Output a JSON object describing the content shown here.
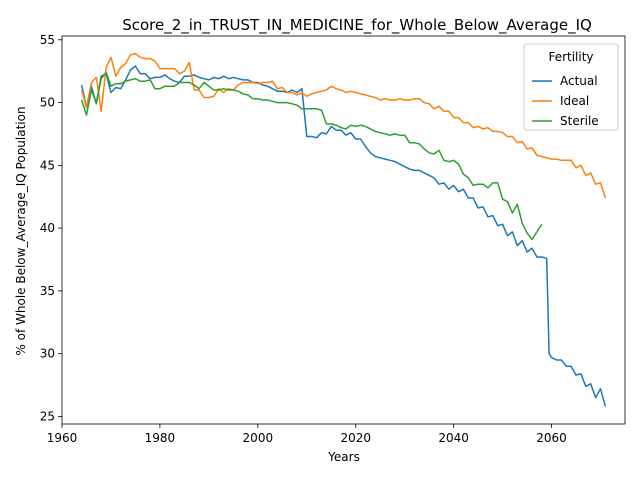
{
  "chart_data": {
    "type": "line",
    "title": "Score_2_in_TRUST_IN_MEDICINE_for_Whole_Below_Average_IQ",
    "xlabel": "Years",
    "ylabel": "% of Whole Below_Average_IQ Population",
    "xlim": [
      1960,
      2075
    ],
    "ylim": [
      24.4,
      55.3
    ],
    "xticks": [
      1960,
      1980,
      2000,
      2020,
      2040,
      2060
    ],
    "yticks": [
      25,
      30,
      35,
      40,
      45,
      50,
      55
    ],
    "grid": false,
    "legend": {
      "title": "Fertility",
      "placement": "top-right"
    },
    "series": [
      {
        "name": "Actual",
        "color": "#1f77b4",
        "points": [
          [
            1964,
            51.4
          ],
          [
            1965,
            49.6
          ],
          [
            1966,
            51.3
          ],
          [
            1967,
            49.9
          ],
          [
            1968,
            52.1
          ],
          [
            1969,
            52.3
          ],
          [
            1970,
            50.8
          ],
          [
            1971,
            51.2
          ],
          [
            1972,
            51.1
          ],
          [
            1973,
            51.8
          ],
          [
            1974,
            52.6
          ],
          [
            1975,
            52.9
          ],
          [
            1976,
            52.3
          ],
          [
            1977,
            52.3
          ],
          [
            1978,
            51.9
          ],
          [
            1979,
            52.0
          ],
          [
            1980,
            52.0
          ],
          [
            1981,
            52.2
          ],
          [
            1982,
            51.9
          ],
          [
            1983,
            51.7
          ],
          [
            1984,
            51.6
          ],
          [
            1985,
            52.1
          ],
          [
            1986,
            52.1
          ],
          [
            1987,
            52.2
          ],
          [
            1988,
            52.0
          ],
          [
            1989,
            51.9
          ],
          [
            1990,
            51.8
          ],
          [
            1991,
            52.0
          ],
          [
            1992,
            51.9
          ],
          [
            1993,
            52.1
          ],
          [
            1994,
            51.9
          ],
          [
            1995,
            52.0
          ],
          [
            1996,
            51.9
          ],
          [
            1997,
            51.8
          ],
          [
            1998,
            51.8
          ],
          [
            1999,
            51.6
          ],
          [
            2000,
            51.6
          ],
          [
            2001,
            51.4
          ],
          [
            2002,
            51.3
          ],
          [
            2003,
            51.1
          ],
          [
            2004,
            50.9
          ],
          [
            2005,
            50.9
          ],
          [
            2006,
            50.8
          ],
          [
            2007,
            51.0
          ],
          [
            2008,
            50.8
          ],
          [
            2009,
            51.1
          ],
          [
            2010,
            47.3
          ],
          [
            2011,
            47.3
          ],
          [
            2012,
            47.2
          ],
          [
            2013,
            47.6
          ],
          [
            2014,
            47.5
          ],
          [
            2015,
            48.1
          ],
          [
            2016,
            47.8
          ],
          [
            2017,
            47.8
          ],
          [
            2018,
            47.4
          ],
          [
            2019,
            47.6
          ],
          [
            2020,
            47.1
          ],
          [
            2021,
            47.1
          ],
          [
            2022,
            46.5
          ],
          [
            2023,
            46.0
          ],
          [
            2024,
            45.7
          ],
          [
            2025,
            45.6
          ],
          [
            2026,
            45.5
          ],
          [
            2027,
            45.4
          ],
          [
            2028,
            45.3
          ],
          [
            2029,
            45.1
          ],
          [
            2030,
            44.9
          ],
          [
            2031,
            44.7
          ],
          [
            2032,
            44.6
          ],
          [
            2033,
            44.6
          ],
          [
            2034,
            44.4
          ],
          [
            2035,
            44.2
          ],
          [
            2036,
            44.0
          ],
          [
            2037,
            43.5
          ],
          [
            2038,
            43.6
          ],
          [
            2039,
            43.1
          ],
          [
            2040,
            43.4
          ],
          [
            2041,
            42.9
          ],
          [
            2042,
            43.1
          ],
          [
            2043,
            42.4
          ],
          [
            2044,
            42.4
          ],
          [
            2045,
            41.6
          ],
          [
            2046,
            41.7
          ],
          [
            2047,
            40.9
          ],
          [
            2048,
            41.0
          ],
          [
            2049,
            40.2
          ],
          [
            2050,
            40.3
          ],
          [
            2051,
            39.4
          ],
          [
            2052,
            39.7
          ],
          [
            2053,
            38.6
          ],
          [
            2054,
            39.0
          ],
          [
            2055,
            38.1
          ],
          [
            2056,
            38.4
          ],
          [
            2057,
            37.7
          ],
          [
            2058,
            37.7
          ],
          [
            2059,
            37.6
          ],
          [
            2059.5,
            30.0
          ],
          [
            2060,
            29.7
          ],
          [
            2061,
            29.5
          ],
          [
            2062,
            29.5
          ],
          [
            2063,
            29.0
          ],
          [
            2064,
            29.0
          ],
          [
            2065,
            28.3
          ],
          [
            2066,
            28.4
          ],
          [
            2067,
            27.4
          ],
          [
            2068,
            27.6
          ],
          [
            2069,
            26.5
          ],
          [
            2070,
            27.2
          ],
          [
            2071,
            25.8
          ]
        ]
      },
      {
        "name": "Ideal",
        "color": "#ff7f0e",
        "points": [
          [
            1964,
            51.0
          ],
          [
            1965,
            49.6
          ],
          [
            1966,
            51.6
          ],
          [
            1967,
            52.0
          ],
          [
            1968,
            49.3
          ],
          [
            1969,
            52.8
          ],
          [
            1970,
            53.6
          ],
          [
            1971,
            52.1
          ],
          [
            1972,
            52.8
          ],
          [
            1973,
            53.1
          ],
          [
            1974,
            53.8
          ],
          [
            1975,
            53.9
          ],
          [
            1976,
            53.6
          ],
          [
            1977,
            53.5
          ],
          [
            1978,
            53.5
          ],
          [
            1979,
            53.3
          ],
          [
            1980,
            52.7
          ],
          [
            1981,
            52.7
          ],
          [
            1982,
            52.7
          ],
          [
            1983,
            52.7
          ],
          [
            1984,
            52.3
          ],
          [
            1985,
            52.5
          ],
          [
            1986,
            53.2
          ],
          [
            1987,
            51.0
          ],
          [
            1988,
            51.0
          ],
          [
            1989,
            50.4
          ],
          [
            1990,
            50.4
          ],
          [
            1991,
            50.5
          ],
          [
            1992,
            51.1
          ],
          [
            1993,
            50.8
          ],
          [
            1994,
            51.1
          ],
          [
            1995,
            51.0
          ],
          [
            1996,
            51.4
          ],
          [
            1997,
            51.6
          ],
          [
            1998,
            51.6
          ],
          [
            1999,
            51.6
          ],
          [
            2000,
            51.5
          ],
          [
            2001,
            51.6
          ],
          [
            2002,
            51.6
          ],
          [
            2003,
            51.7
          ],
          [
            2004,
            51.1
          ],
          [
            2005,
            51.2
          ],
          [
            2006,
            50.8
          ],
          [
            2007,
            50.8
          ],
          [
            2008,
            50.6
          ],
          [
            2009,
            50.8
          ],
          [
            2010,
            50.5
          ],
          [
            2011,
            50.7
          ],
          [
            2012,
            50.8
          ],
          [
            2013,
            50.9
          ],
          [
            2014,
            51.0
          ],
          [
            2015,
            51.3
          ],
          [
            2016,
            51.1
          ],
          [
            2017,
            51.0
          ],
          [
            2018,
            50.8
          ],
          [
            2019,
            50.9
          ],
          [
            2020,
            50.8
          ],
          [
            2021,
            50.7
          ],
          [
            2022,
            50.6
          ],
          [
            2023,
            50.5
          ],
          [
            2024,
            50.4
          ],
          [
            2025,
            50.2
          ],
          [
            2026,
            50.3
          ],
          [
            2027,
            50.2
          ],
          [
            2028,
            50.2
          ],
          [
            2029,
            50.3
          ],
          [
            2030,
            50.2
          ],
          [
            2031,
            50.2
          ],
          [
            2032,
            50.3
          ],
          [
            2033,
            50.3
          ],
          [
            2034,
            50.0
          ],
          [
            2035,
            49.9
          ],
          [
            2036,
            49.5
          ],
          [
            2037,
            49.7
          ],
          [
            2038,
            49.3
          ],
          [
            2039,
            49.3
          ],
          [
            2040,
            48.8
          ],
          [
            2041,
            48.8
          ],
          [
            2042,
            48.4
          ],
          [
            2043,
            48.4
          ],
          [
            2044,
            48.0
          ],
          [
            2045,
            48.1
          ],
          [
            2046,
            47.9
          ],
          [
            2047,
            48.0
          ],
          [
            2048,
            47.7
          ],
          [
            2049,
            47.7
          ],
          [
            2050,
            47.6
          ],
          [
            2051,
            47.3
          ],
          [
            2052,
            47.3
          ],
          [
            2053,
            46.8
          ],
          [
            2054,
            46.9
          ],
          [
            2055,
            46.3
          ],
          [
            2056,
            46.4
          ],
          [
            2057,
            45.8
          ],
          [
            2058,
            45.7
          ],
          [
            2059,
            45.6
          ],
          [
            2060,
            45.5
          ],
          [
            2061,
            45.5
          ],
          [
            2062,
            45.4
          ],
          [
            2063,
            45.4
          ],
          [
            2064,
            45.4
          ],
          [
            2065,
            44.8
          ],
          [
            2066,
            45.0
          ],
          [
            2067,
            44.2
          ],
          [
            2068,
            44.4
          ],
          [
            2069,
            43.5
          ],
          [
            2070,
            43.6
          ],
          [
            2071,
            42.4
          ]
        ]
      },
      {
        "name": "Sterile",
        "color": "#2ca02c",
        "points": [
          [
            1964,
            50.2
          ],
          [
            1965,
            49.0
          ],
          [
            1966,
            51.0
          ],
          [
            1967,
            50.0
          ],
          [
            1968,
            51.9
          ],
          [
            1969,
            52.4
          ],
          [
            1970,
            51.3
          ],
          [
            1971,
            51.5
          ],
          [
            1972,
            51.5
          ],
          [
            1973,
            51.7
          ],
          [
            1974,
            51.8
          ],
          [
            1975,
            51.9
          ],
          [
            1976,
            51.7
          ],
          [
            1977,
            51.7
          ],
          [
            1978,
            51.8
          ],
          [
            1979,
            51.1
          ],
          [
            1980,
            51.1
          ],
          [
            1981,
            51.3
          ],
          [
            1982,
            51.3
          ],
          [
            1983,
            51.3
          ],
          [
            1984,
            51.6
          ],
          [
            1985,
            51.6
          ],
          [
            1986,
            51.6
          ],
          [
            1987,
            51.4
          ],
          [
            1988,
            51.1
          ],
          [
            1989,
            51.6
          ],
          [
            1990,
            51.3
          ],
          [
            1991,
            51.0
          ],
          [
            1992,
            51.0
          ],
          [
            1993,
            51.1
          ],
          [
            1994,
            51.0
          ],
          [
            1995,
            51.0
          ],
          [
            1996,
            50.9
          ],
          [
            1997,
            50.7
          ],
          [
            1998,
            50.6
          ],
          [
            1999,
            50.3
          ],
          [
            2000,
            50.3
          ],
          [
            2001,
            50.2
          ],
          [
            2002,
            50.2
          ],
          [
            2003,
            50.1
          ],
          [
            2004,
            50.0
          ],
          [
            2005,
            50.0
          ],
          [
            2006,
            50.0
          ],
          [
            2007,
            49.9
          ],
          [
            2008,
            49.8
          ],
          [
            2009,
            49.5
          ],
          [
            2010,
            49.5
          ],
          [
            2011,
            49.5
          ],
          [
            2012,
            49.5
          ],
          [
            2013,
            49.4
          ],
          [
            2014,
            48.3
          ],
          [
            2015,
            48.3
          ],
          [
            2016,
            48.2
          ],
          [
            2017,
            48.0
          ],
          [
            2018,
            47.9
          ],
          [
            2019,
            48.2
          ],
          [
            2020,
            48.1
          ],
          [
            2021,
            48.2
          ],
          [
            2022,
            48.1
          ],
          [
            2023,
            47.9
          ],
          [
            2024,
            47.7
          ],
          [
            2025,
            47.6
          ],
          [
            2026,
            47.5
          ],
          [
            2027,
            47.4
          ],
          [
            2028,
            47.5
          ],
          [
            2029,
            47.4
          ],
          [
            2030,
            47.4
          ],
          [
            2031,
            46.8
          ],
          [
            2032,
            46.8
          ],
          [
            2033,
            46.7
          ],
          [
            2034,
            46.3
          ],
          [
            2035,
            46.0
          ],
          [
            2036,
            45.9
          ],
          [
            2037,
            46.2
          ],
          [
            2038,
            45.4
          ],
          [
            2039,
            45.3
          ],
          [
            2040,
            45.4
          ],
          [
            2041,
            45.1
          ],
          [
            2042,
            44.3
          ],
          [
            2043,
            44.0
          ],
          [
            2044,
            43.4
          ],
          [
            2045,
            43.5
          ],
          [
            2046,
            43.5
          ],
          [
            2047,
            43.2
          ],
          [
            2048,
            43.6
          ],
          [
            2049,
            43.6
          ],
          [
            2050,
            42.3
          ],
          [
            2051,
            42.1
          ],
          [
            2052,
            41.2
          ],
          [
            2053,
            41.9
          ],
          [
            2054,
            40.4
          ],
          [
            2055,
            39.6
          ],
          [
            2056,
            39.1
          ],
          [
            2057,
            39.7
          ],
          [
            2058,
            40.3
          ]
        ]
      }
    ]
  }
}
